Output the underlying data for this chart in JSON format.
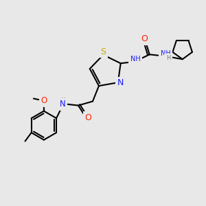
{
  "bg": "#e8e8e8",
  "N_color": "#1a1aff",
  "O_color": "#ff2200",
  "S_color": "#ccaa00",
  "C_color": "#000000",
  "lw": 1.5,
  "fs": 8.0,
  "fs_small": 6.5,
  "xlim": [
    0,
    10
  ],
  "ylim": [
    0,
    10
  ]
}
